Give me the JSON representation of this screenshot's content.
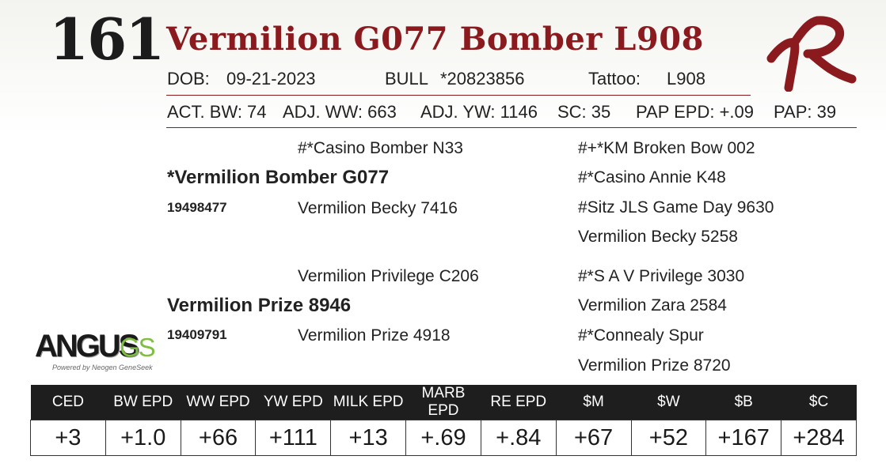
{
  "lot_number": "161",
  "animal_name": "Vermilion G077 Bomber L908",
  "info_row1": {
    "dob_label": "DOB:",
    "dob_value": "09-21-2023",
    "sex": "BULL",
    "registration": "*20823856",
    "tattoo_label": "Tattoo:",
    "tattoo_value": "L908"
  },
  "info_row2": {
    "act_bw": "ACT. BW: 74",
    "adj_ww": "ADJ. WW: 663",
    "adj_yw": "ADJ. YW: 1146",
    "sc": "SC: 35",
    "pap_epd": "PAP EPD: +.09",
    "pap": "PAP: 39"
  },
  "pedigree": {
    "sire": {
      "name": "*Vermilion Bomber G077",
      "reg": "19498477",
      "sire": "#*Casino Bomber N33",
      "dam": "Vermilion Becky 7416",
      "sire_sire": "#+*KM Broken Bow 002",
      "sire_dam": "#*Casino Annie K48",
      "dam_sire": "#Sitz JLS Game Day 9630",
      "dam_dam": "Vermilion Becky 5258"
    },
    "dam": {
      "name": "Vermilion Prize 8946",
      "reg": "19409791",
      "sire": "Vermilion Privilege C206",
      "dam": "Vermilion Prize 4918",
      "sire_sire": "#*S A V Privilege 3030",
      "sire_dam": "Vermilion Zara 2584",
      "dam_sire": "#*Connealy Spur",
      "dam_dam": "Vermilion Prize 8720"
    }
  },
  "logos": {
    "angus_main": "ANGUS",
    "angus_gs": "GS",
    "angus_tagline": "Powered by Neogen GeneSeek",
    "brand_mark": "vermilion-brand-icon"
  },
  "epd_headers": [
    "CED",
    "BW EPD",
    "WW EPD",
    "YW EPD",
    "MILK EPD",
    "MARB EPD",
    "RE EPD",
    "$M",
    "$W",
    "$B",
    "$C"
  ],
  "epd_values": [
    "+3",
    "+1.0",
    "+66",
    "+111",
    "+13",
    "+.69",
    "+.84",
    "+67",
    "+52",
    "+167",
    "+284"
  ],
  "colors": {
    "accent": "#8b1a1f",
    "table_header": "#1e1e1e",
    "angus_green": "#7fbf3f"
  }
}
